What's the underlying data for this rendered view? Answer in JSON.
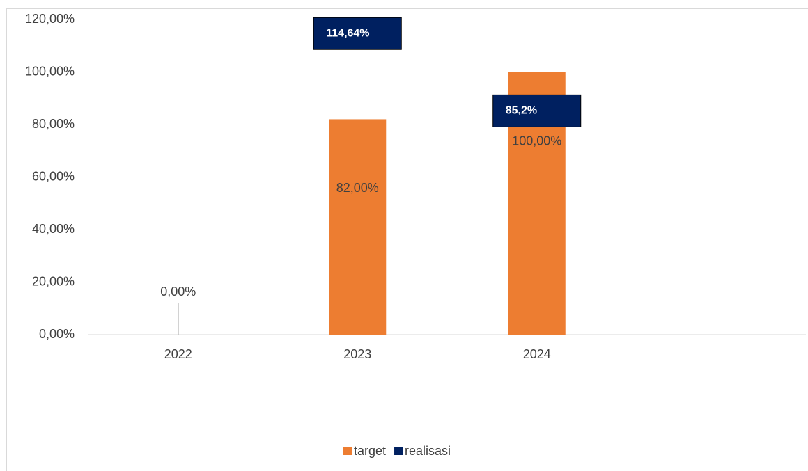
{
  "chart_data": {
    "type": "bar",
    "categories": [
      "2022",
      "2023",
      "2024",
      null
    ],
    "series": [
      {
        "name": "target",
        "color": "#ed7d31",
        "values": [
          0,
          82,
          100,
          null
        ],
        "value_labels": [
          "0,00%",
          "82,00%",
          "100,00%",
          null
        ]
      },
      {
        "name": "realisasi",
        "color": "#002060",
        "values": [
          null,
          114.64,
          85.2,
          null
        ],
        "value_labels": [
          null,
          "114,64%",
          "85,2%",
          null
        ]
      }
    ],
    "ylim": [
      0,
      120
    ],
    "yticks": [
      {
        "value": 0,
        "label": "0,00%"
      },
      {
        "value": 20,
        "label": "20,00%"
      },
      {
        "value": 40,
        "label": "40,00%"
      },
      {
        "value": 60,
        "label": "60,00%"
      },
      {
        "value": 80,
        "label": "80,00%"
      },
      {
        "value": 100,
        "label": "100,00%"
      },
      {
        "value": 120,
        "label": "120,00%"
      }
    ],
    "legend": "bottom"
  }
}
